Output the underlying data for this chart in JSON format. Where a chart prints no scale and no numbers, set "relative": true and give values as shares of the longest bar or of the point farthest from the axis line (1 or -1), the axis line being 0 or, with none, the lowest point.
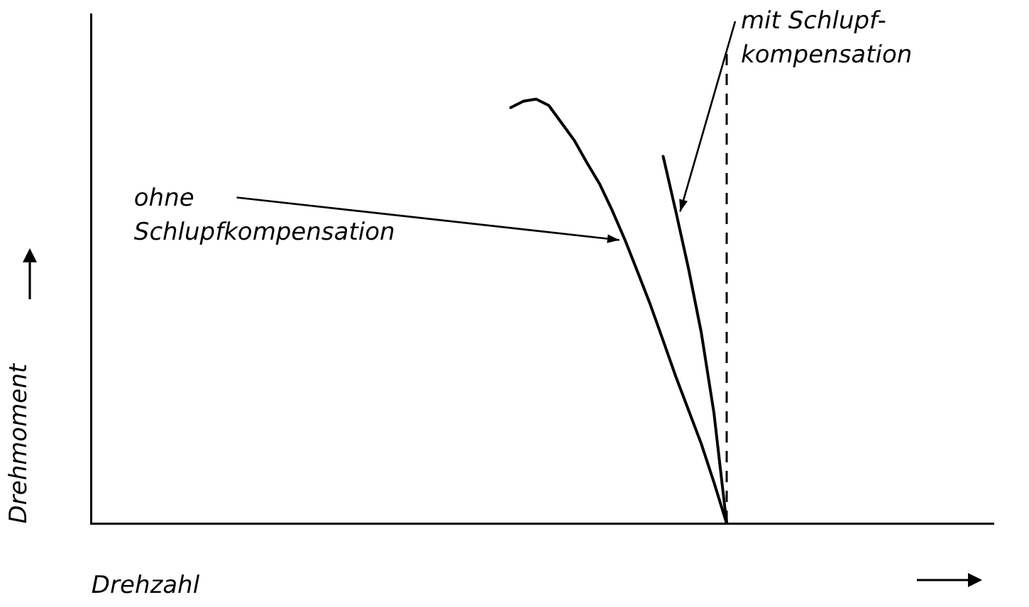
{
  "chart_data": {
    "type": "line",
    "relative": true,
    "xlabel": "Drehzahl",
    "ylabel": "Drehmoment",
    "legend": false,
    "marker": "none",
    "line_style": "solid",
    "categories": [
      null,
      null,
      null,
      null,
      null,
      null,
      null,
      null,
      null,
      null,
      null,
      null,
      null,
      null,
      null,
      null,
      null,
      null,
      null,
      null,
      null,
      null,
      null,
      null,
      null,
      null,
      null,
      null,
      null,
      null,
      null,
      null,
      null,
      null,
      null,
      null,
      null,
      null,
      null,
      null,
      null,
      null,
      null,
      null,
      null,
      null,
      null,
      null,
      null,
      null,
      null,
      null,
      null,
      null,
      null,
      null,
      null,
      null,
      null,
      null,
      null,
      null,
      null,
      null,
      null,
      null,
      null,
      null,
      null,
      null,
      null,
      null
    ],
    "series": [
      {
        "name": "ohne Schlupfkompensation",
        "color": "#000000",
        "values": [
          null,
          null,
          null,
          null,
          null,
          null,
          null,
          null,
          null,
          null,
          null,
          null,
          null,
          null,
          null,
          null,
          null,
          null,
          null,
          null,
          null,
          null,
          null,
          null,
          null,
          null,
          null,
          null,
          null,
          null,
          null,
          null,
          null,
          0.98,
          0.995,
          1,
          0.985,
          0.944,
          0.903,
          0.85,
          0.8,
          0.737,
          0.668,
          0.592,
          0.515,
          0.431,
          0.346,
          0.267,
          0.188,
          0.097,
          0,
          null,
          null,
          null,
          null,
          null,
          null,
          null,
          null,
          null,
          null,
          null,
          null,
          null,
          null,
          null,
          null,
          null,
          null,
          null,
          null,
          null
        ]
      },
      {
        "name": "mit Schlupf-kompensation",
        "color": "#000000",
        "values": [
          null,
          null,
          null,
          null,
          null,
          null,
          null,
          null,
          null,
          null,
          null,
          null,
          null,
          null,
          null,
          null,
          null,
          null,
          null,
          null,
          null,
          null,
          null,
          null,
          null,
          null,
          null,
          null,
          null,
          null,
          null,
          null,
          null,
          null,
          null,
          null,
          null,
          null,
          null,
          null,
          null,
          null,
          null,
          null,
          null,
          0.865,
          0.735,
          0.6,
          0.45,
          0.26,
          0,
          null,
          null,
          null,
          null,
          null,
          null,
          null,
          null,
          null,
          null,
          null,
          null,
          null,
          null,
          null,
          null,
          null,
          null,
          null,
          null,
          null
        ]
      }
    ],
    "ref_lines": [
      {
        "axis": "x",
        "color": "#000000",
        "line_style": "dashed"
      }
    ]
  }
}
